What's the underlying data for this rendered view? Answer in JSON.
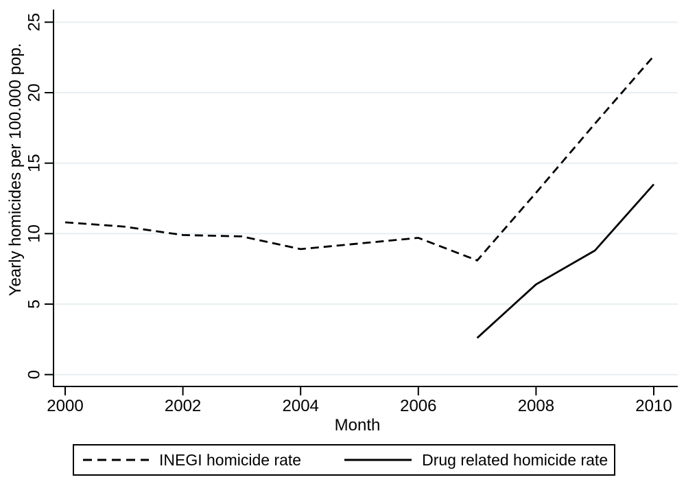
{
  "figure": {
    "x_axis_title": "Month",
    "y_axis_title": "Yearly homicides per 100.000 pop."
  },
  "legend": {
    "items": [
      {
        "label": "INEGI homicide rate",
        "style": "dashed"
      },
      {
        "label": "Drug related homicide rate",
        "style": "solid"
      }
    ]
  },
  "chart_data": {
    "type": "line",
    "title": "",
    "xlabel": "Month",
    "ylabel": "Yearly homicides per 100.000 pop.",
    "x": [
      2000,
      2001,
      2002,
      2003,
      2004,
      2005,
      2006,
      2007,
      2008,
      2009,
      2010
    ],
    "series": [
      {
        "name": "INEGI homicide rate",
        "line_style": "dashed",
        "color": "#000000",
        "values": [
          10.8,
          10.5,
          9.9,
          9.8,
          8.9,
          9.3,
          9.7,
          8.1,
          12.9,
          17.8,
          22.6
        ]
      },
      {
        "name": "Drug related homicide rate",
        "line_style": "solid",
        "color": "#000000",
        "values": [
          null,
          null,
          null,
          null,
          null,
          null,
          null,
          2.6,
          6.4,
          8.8,
          13.5
        ]
      }
    ],
    "xlim": [
      2000,
      2010
    ],
    "ylim": [
      0,
      25
    ],
    "x_ticks": [
      2000,
      2002,
      2004,
      2006,
      2008,
      2010
    ],
    "y_ticks": [
      0,
      5,
      10,
      15,
      20,
      25
    ],
    "grid": "horizontal",
    "grid_color": "#e7eff2",
    "legend_position": "bottom"
  }
}
